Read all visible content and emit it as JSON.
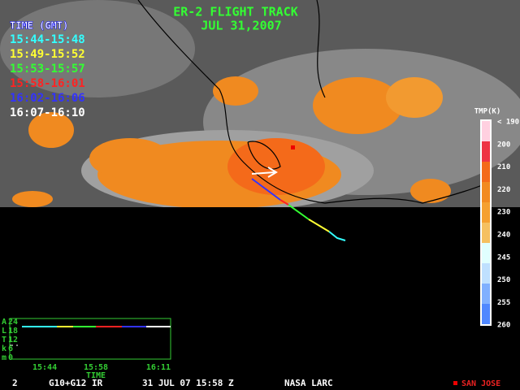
{
  "header": {
    "title": "ER-2 FLIGHT TRACK",
    "date": "JUL 31,2007"
  },
  "legend": {
    "title": "TIME (GMT)",
    "entries": [
      {
        "label": "15:44-15:48",
        "color": "#33ffff"
      },
      {
        "label": "15:49-15:52",
        "color": "#ffff33"
      },
      {
        "label": "15:53-15:57",
        "color": "#33ff33"
      },
      {
        "label": "15:58-16:01",
        "color": "#ff2222"
      },
      {
        "label": "16:02-16:06",
        "color": "#3333ff"
      },
      {
        "label": "16:07-16:10",
        "color": "#ffffff"
      }
    ]
  },
  "colorbar": {
    "title": "TMP(K)",
    "labels": [
      "< 190",
      "200",
      "210",
      "220",
      "230",
      "240",
      "245",
      "250",
      "255",
      "260"
    ]
  },
  "altitude_panel": {
    "axis_letters": [
      "A",
      "L",
      "T",
      "k",
      "m"
    ],
    "ticks": [
      "24",
      "18",
      "12",
      "6",
      "0"
    ],
    "time_ticks": [
      "15:44",
      "15:58",
      "16:11"
    ],
    "time_label": "TIME"
  },
  "footer": {
    "frame": "2",
    "source": "G10+G12 IR",
    "datetime": "31 JUL 07 15:58 Z",
    "agency": "NASA LARC",
    "marker_label": "SAN JOSE"
  }
}
